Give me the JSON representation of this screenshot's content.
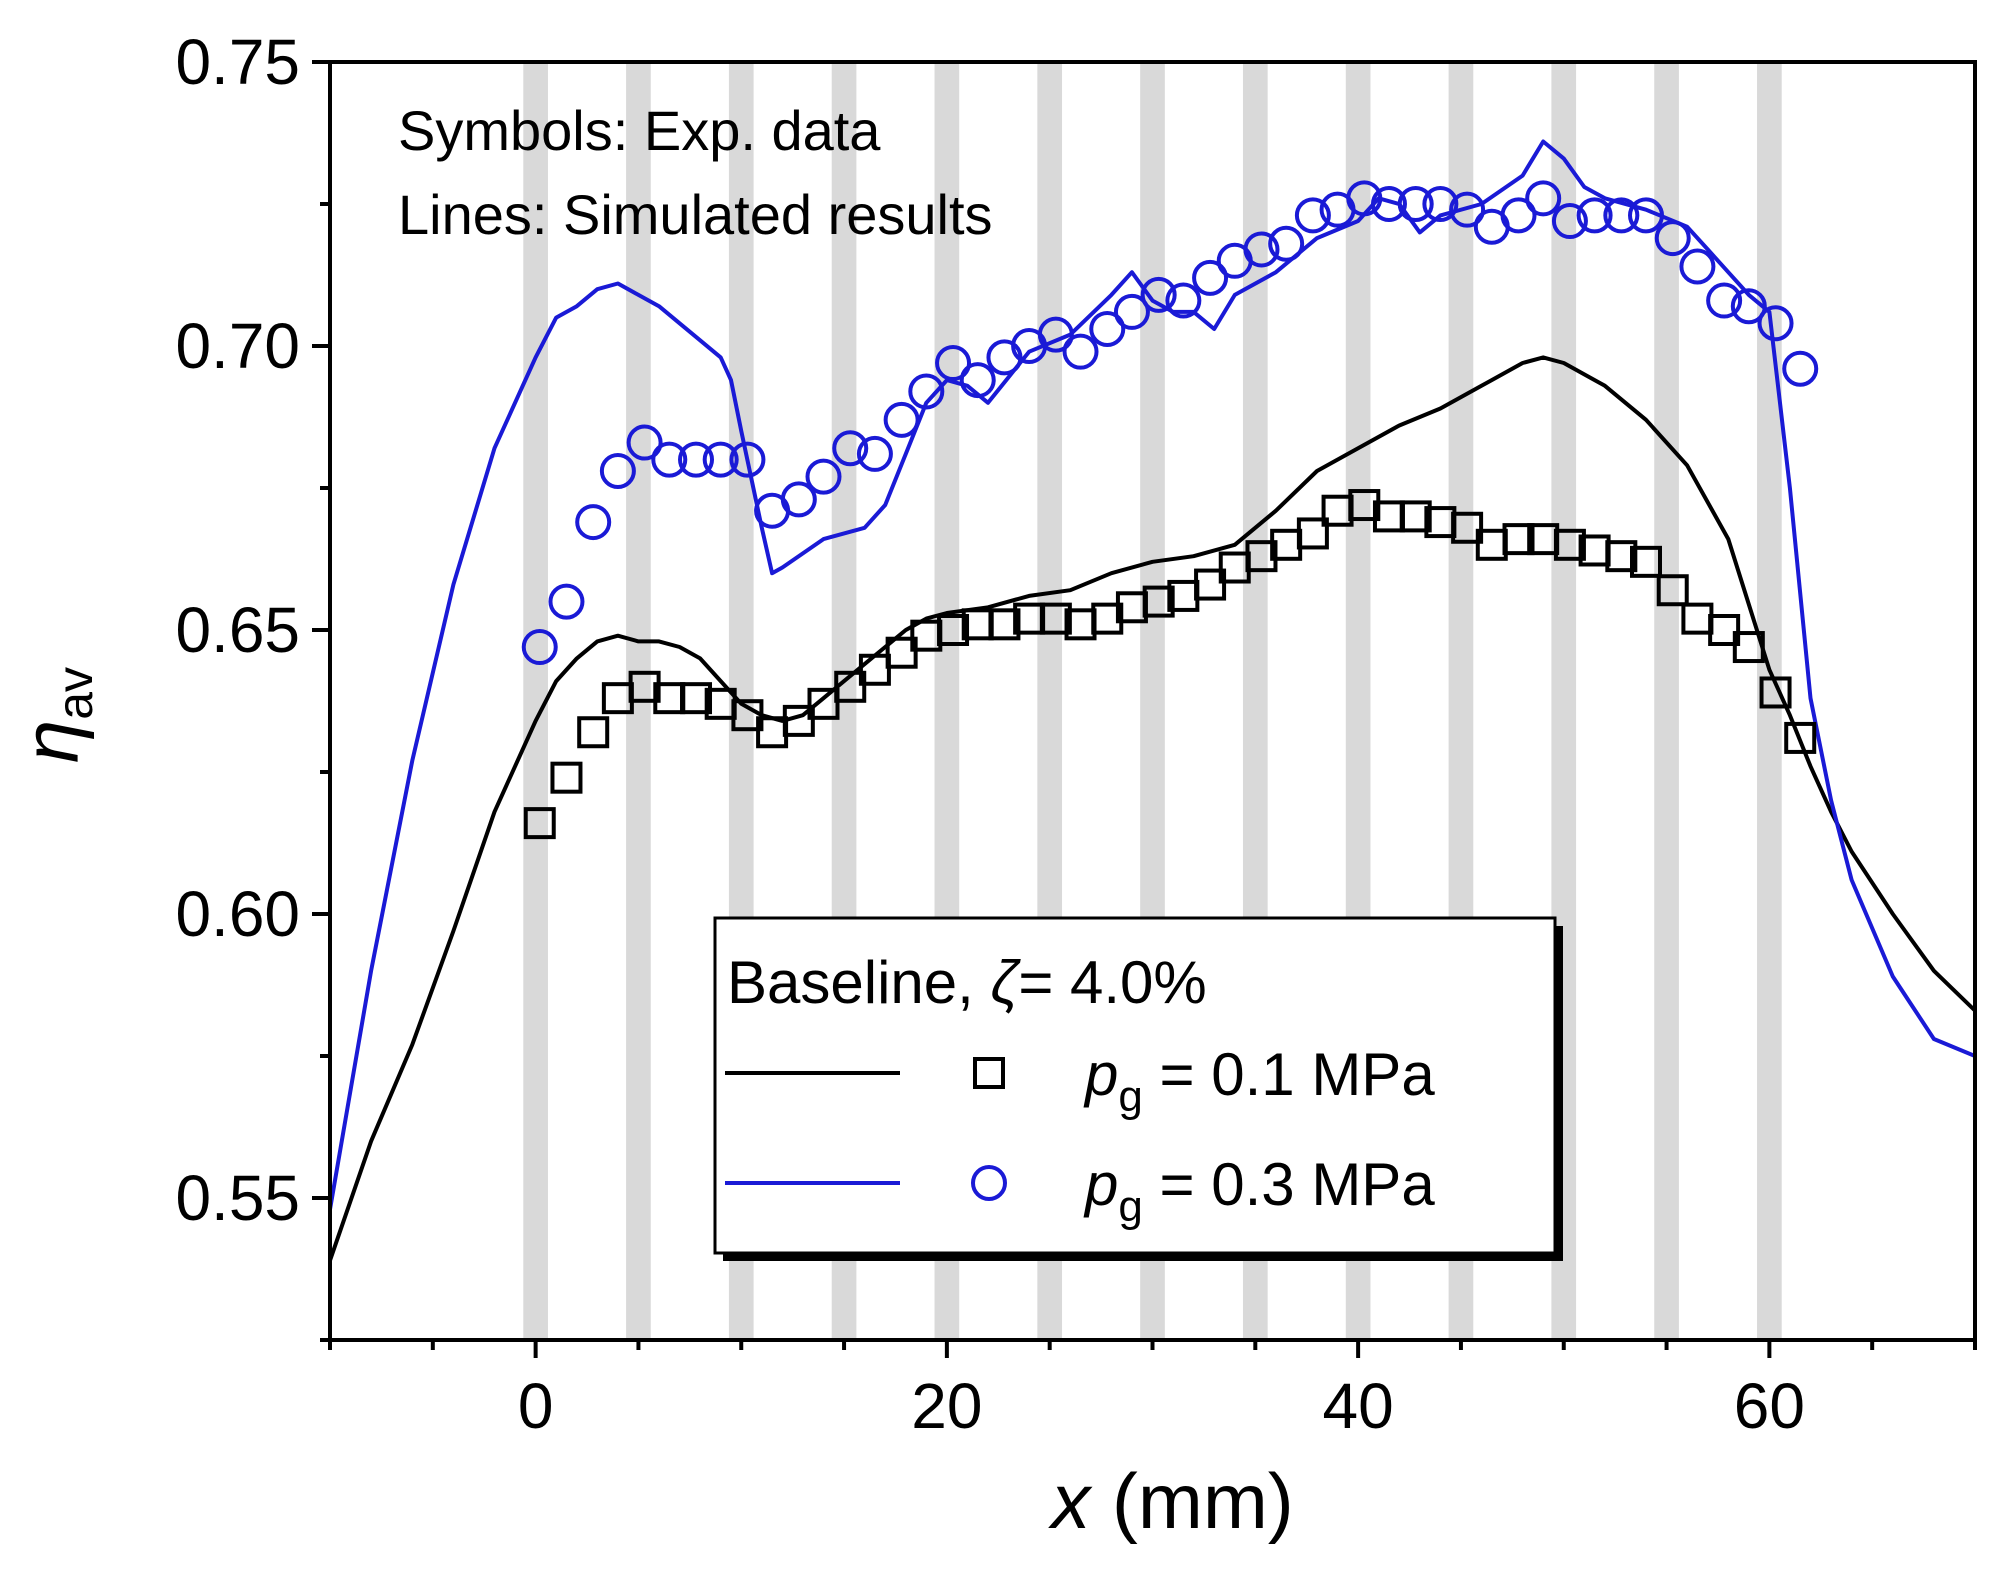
{
  "chart_data": {
    "type": "line",
    "xlabel": {
      "var": "x",
      "unit": " (mm)"
    },
    "ylabel": {
      "main": "η",
      "sub": "av"
    },
    "xlim": [
      -10,
      70
    ],
    "ylim": [
      0.525,
      0.75
    ],
    "xticks": [
      0,
      20,
      40,
      60
    ],
    "xtick_labels": [
      "0",
      "20",
      "40",
      "60"
    ],
    "yticks": [
      0.55,
      0.6,
      0.65,
      0.7,
      0.75
    ],
    "ytick_labels": [
      "0.55",
      "0.60",
      "0.65",
      "0.70",
      "0.75"
    ],
    "grid": false,
    "shaded_bands": [
      {
        "x0": -0.6,
        "x1": 0.6
      },
      {
        "x0": 4.4,
        "x1": 5.6
      },
      {
        "x0": 9.4,
        "x1": 10.6
      },
      {
        "x0": 14.4,
        "x1": 15.6
      },
      {
        "x0": 19.4,
        "x1": 20.6
      },
      {
        "x0": 24.4,
        "x1": 25.6
      },
      {
        "x0": 29.4,
        "x1": 30.6
      },
      {
        "x0": 34.4,
        "x1": 35.6
      },
      {
        "x0": 39.4,
        "x1": 40.6
      },
      {
        "x0": 44.4,
        "x1": 45.6
      },
      {
        "x0": 49.4,
        "x1": 50.6
      },
      {
        "x0": 54.4,
        "x1": 55.6
      },
      {
        "x0": 59.4,
        "x1": 60.6
      }
    ],
    "annotations": {
      "line1": "Symbols: Exp. data",
      "line2": "Lines: Simulated results"
    },
    "legend": {
      "placement": "lower-center",
      "title_prefix": "Baseline, ",
      "title_symbol": "ζ",
      "title_suffix": "= 4.0%",
      "entries": [
        {
          "var": "p",
          "sub": "g",
          "text": " = 0.1 MPa"
        },
        {
          "var": "p",
          "sub": "g",
          "text": " = 0.3 MPa"
        }
      ]
    },
    "series": [
      {
        "name": "Simulated, pg = 0.1 MPa",
        "kind": "line",
        "color": "#000000",
        "x": [
          -10,
          -8,
          -6,
          -4,
          -2,
          0,
          1,
          2,
          3,
          4,
          5,
          6,
          7,
          8,
          9,
          10,
          11,
          12,
          13,
          14,
          15,
          16,
          17,
          18,
          19,
          20,
          22,
          24,
          26,
          28,
          30,
          32,
          34,
          36,
          38,
          40,
          42,
          44,
          46,
          48,
          49,
          50,
          52,
          54,
          56,
          58,
          60,
          61,
          62,
          63,
          64,
          66,
          68,
          70
        ],
        "y": [
          0.539,
          0.56,
          0.577,
          0.597,
          0.618,
          0.634,
          0.641,
          0.645,
          0.648,
          0.649,
          0.648,
          0.648,
          0.647,
          0.645,
          0.641,
          0.637,
          0.635,
          0.634,
          0.635,
          0.638,
          0.641,
          0.644,
          0.647,
          0.65,
          0.652,
          0.653,
          0.654,
          0.656,
          0.657,
          0.66,
          0.662,
          0.663,
          0.665,
          0.671,
          0.678,
          0.682,
          0.686,
          0.689,
          0.693,
          0.697,
          0.698,
          0.697,
          0.693,
          0.687,
          0.679,
          0.666,
          0.643,
          0.635,
          0.626,
          0.618,
          0.611,
          0.6,
          0.59,
          0.583
        ]
      },
      {
        "name": "Simulated, pg = 0.3 MPa",
        "kind": "line",
        "color": "#1a1ad6",
        "x": [
          -10,
          -8,
          -6,
          -4,
          -2,
          0,
          1,
          2,
          3,
          4,
          5,
          6,
          7,
          8,
          9,
          9.5,
          10,
          11,
          11.5,
          12,
          14,
          16,
          17,
          18,
          19,
          20,
          21,
          22,
          24,
          26,
          28,
          29,
          30,
          31,
          32,
          33,
          34,
          36,
          38,
          40,
          41,
          42,
          43,
          44,
          46,
          48,
          49,
          50,
          51,
          52,
          54,
          56,
          57,
          58,
          59,
          60,
          61,
          62,
          63,
          64,
          66,
          68,
          70
        ],
        "y": [
          0.548,
          0.59,
          0.627,
          0.658,
          0.682,
          0.698,
          0.705,
          0.707,
          0.71,
          0.711,
          0.709,
          0.707,
          0.704,
          0.701,
          0.698,
          0.694,
          0.685,
          0.668,
          0.66,
          0.661,
          0.666,
          0.668,
          0.672,
          0.681,
          0.69,
          0.694,
          0.693,
          0.69,
          0.699,
          0.702,
          0.709,
          0.713,
          0.708,
          0.706,
          0.706,
          0.703,
          0.709,
          0.713,
          0.719,
          0.722,
          0.726,
          0.725,
          0.72,
          0.723,
          0.725,
          0.73,
          0.736,
          0.733,
          0.728,
          0.726,
          0.724,
          0.721,
          0.717,
          0.713,
          0.709,
          0.706,
          0.675,
          0.638,
          0.62,
          0.606,
          0.589,
          0.578,
          0.575
        ]
      },
      {
        "name": "Exp., pg = 0.1 MPa",
        "kind": "scatter",
        "marker": "square",
        "color": "#000000",
        "x": [
          0.2,
          1.5,
          2.8,
          4.0,
          5.3,
          6.5,
          7.8,
          9.0,
          10.3,
          11.5,
          12.8,
          14.0,
          15.3,
          16.5,
          17.8,
          19.0,
          20.3,
          21.5,
          22.8,
          24.0,
          25.3,
          26.5,
          27.8,
          29.0,
          30.3,
          31.5,
          32.8,
          34.0,
          35.3,
          36.5,
          37.8,
          39.0,
          40.3,
          41.5,
          42.8,
          44.0,
          45.3,
          46.5,
          47.8,
          49.0,
          50.3,
          51.5,
          52.8,
          54.0,
          55.3,
          56.5,
          57.8,
          59.0,
          60.3,
          61.5
        ],
        "y": [
          0.616,
          0.624,
          0.632,
          0.638,
          0.64,
          0.638,
          0.638,
          0.637,
          0.635,
          0.632,
          0.634,
          0.637,
          0.64,
          0.643,
          0.646,
          0.649,
          0.65,
          0.651,
          0.651,
          0.652,
          0.652,
          0.651,
          0.652,
          0.654,
          0.655,
          0.656,
          0.658,
          0.661,
          0.663,
          0.665,
          0.667,
          0.671,
          0.672,
          0.67,
          0.67,
          0.669,
          0.668,
          0.665,
          0.666,
          0.666,
          0.665,
          0.664,
          0.663,
          0.662,
          0.657,
          0.652,
          0.65,
          0.647,
          0.639,
          0.631
        ]
      },
      {
        "name": "Exp., pg = 0.3 MPa",
        "kind": "scatter",
        "marker": "circle",
        "color": "#1a1ad6",
        "x": [
          0.2,
          1.5,
          2.8,
          4.0,
          5.3,
          6.5,
          7.8,
          9.0,
          10.3,
          11.5,
          12.8,
          14.0,
          15.3,
          16.5,
          17.8,
          19.0,
          20.3,
          21.5,
          22.8,
          24.0,
          25.3,
          26.5,
          27.8,
          29.0,
          30.3,
          31.5,
          32.8,
          34.0,
          35.3,
          36.5,
          37.8,
          39.0,
          40.3,
          41.5,
          42.8,
          44.0,
          45.3,
          46.5,
          47.8,
          49.0,
          50.3,
          51.5,
          52.8,
          54.0,
          55.3,
          56.5,
          57.8,
          59.0,
          60.3,
          61.5
        ],
        "y": [
          0.647,
          0.655,
          0.669,
          0.678,
          0.683,
          0.68,
          0.68,
          0.68,
          0.68,
          0.671,
          0.673,
          0.677,
          0.682,
          0.681,
          0.687,
          0.692,
          0.697,
          0.694,
          0.698,
          0.7,
          0.702,
          0.699,
          0.703,
          0.706,
          0.709,
          0.708,
          0.712,
          0.715,
          0.717,
          0.718,
          0.723,
          0.724,
          0.726,
          0.725,
          0.725,
          0.725,
          0.724,
          0.721,
          0.723,
          0.726,
          0.722,
          0.723,
          0.723,
          0.723,
          0.719,
          0.714,
          0.708,
          0.707,
          0.704,
          0.696
        ]
      }
    ]
  }
}
